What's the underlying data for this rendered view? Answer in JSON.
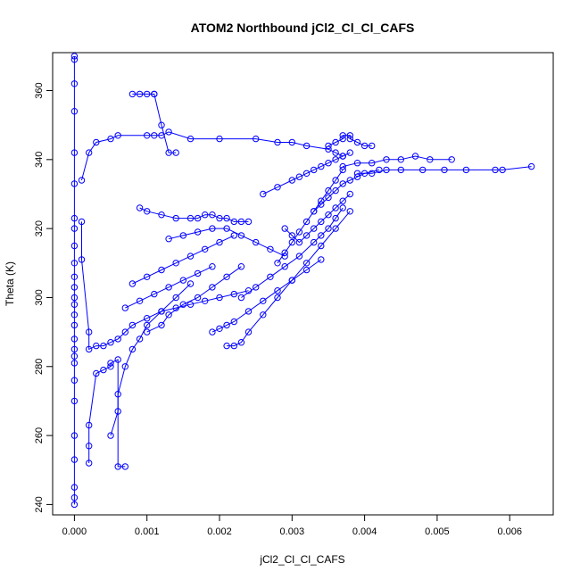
{
  "chart_data": {
    "type": "line",
    "title": "ATOM2 Northbound jCl2_Cl_Cl_CAFS",
    "xlabel": "jCl2_Cl_Cl_CAFS",
    "ylabel": "Theta (K)",
    "xlim": [
      -0.0003,
      0.0066
    ],
    "ylim": [
      237,
      371
    ],
    "x_ticks": [
      0.0,
      0.001,
      0.002,
      0.003,
      0.004,
      0.005,
      0.006
    ],
    "x_tick_labels": [
      "0.000",
      "0.001",
      "0.002",
      "0.003",
      "0.004",
      "0.005",
      "0.006"
    ],
    "y_ticks": [
      240,
      260,
      280,
      300,
      320,
      340,
      360
    ],
    "y_tick_labels": [
      "240",
      "260",
      "280",
      "300",
      "320",
      "340",
      "360"
    ],
    "grid": false,
    "legend": "none",
    "series": [
      {
        "color": "#0000ff",
        "marker": "open-circle",
        "x": [
          0.0,
          0.0,
          0.0,
          0.0,
          0.0,
          0.0,
          0.0,
          0.0,
          0.0,
          0.0,
          0.0,
          0.0,
          0.0,
          0.0,
          0.0,
          0.0,
          0.0,
          0.0,
          0.0,
          0.0,
          0.0,
          0.0,
          0.0,
          0.0,
          0.0,
          0.0,
          0.0
        ],
        "y": [
          240,
          242,
          245,
          253,
          260,
          270,
          276,
          281,
          283,
          285,
          288,
          292,
          295,
          298,
          300,
          303,
          306,
          310,
          315,
          320,
          323,
          333,
          342,
          354,
          362,
          369,
          370
        ]
      },
      {
        "color": "#0000ff",
        "marker": "open-circle",
        "x": [
          0.0001,
          0.0002,
          0.0003,
          0.0005,
          0.0006,
          0.001,
          0.0011,
          0.0012,
          0.0013,
          0.0016,
          0.002,
          0.0025,
          0.0028,
          0.003,
          0.0032,
          0.0035,
          0.0036,
          0.0037
        ],
        "y": [
          334,
          342,
          345,
          346,
          347,
          347,
          347,
          347,
          348,
          346,
          346,
          346,
          345,
          345,
          344,
          343,
          342,
          341
        ]
      },
      {
        "color": "#0000ff",
        "marker": "open-circle",
        "x": [
          0.0001,
          0.0001,
          0.0002,
          0.0002,
          0.0003,
          0.0004,
          0.0005,
          0.0006,
          0.0007,
          0.0008,
          0.001,
          0.0012,
          0.0014,
          0.0016,
          0.0018,
          0.002,
          0.0022,
          0.0024
        ],
        "y": [
          322,
          311,
          290,
          285,
          286,
          286,
          287,
          288,
          290,
          292,
          294,
          296,
          297,
          298,
          299,
          300,
          301,
          302
        ]
      },
      {
        "color": "#0000ff",
        "marker": "open-circle",
        "x": [
          0.0002,
          0.0002,
          0.0002,
          0.0003,
          0.0004,
          0.0005,
          0.0005,
          0.0006,
          0.0006,
          0.0007
        ],
        "y": [
          252,
          257,
          263,
          278,
          279,
          280,
          281,
          282,
          251,
          251
        ]
      },
      {
        "color": "#0000ff",
        "marker": "open-circle",
        "x": [
          0.0005,
          0.0006,
          0.0006,
          0.0007,
          0.0008,
          0.0009,
          0.001,
          0.0012,
          0.0014,
          0.0016
        ],
        "y": [
          260,
          267,
          272,
          280,
          285,
          288,
          292,
          296,
          300,
          304
        ]
      },
      {
        "color": "#0000ff",
        "marker": "open-circle",
        "x": [
          0.0008,
          0.0009,
          0.001,
          0.0011,
          0.0011,
          0.0012,
          0.0013,
          0.0014
        ],
        "y": [
          359,
          359,
          359,
          359,
          359,
          350,
          342,
          342
        ]
      },
      {
        "color": "#0000ff",
        "marker": "open-circle",
        "x": [
          0.0009,
          0.001,
          0.0012,
          0.0014,
          0.0016,
          0.0017,
          0.0018,
          0.0019,
          0.002,
          0.0021,
          0.0022,
          0.0023,
          0.0024
        ],
        "y": [
          326,
          325,
          324,
          323,
          323,
          323,
          324,
          324,
          323,
          323,
          322,
          322,
          322
        ]
      },
      {
        "color": "#0000ff",
        "marker": "open-circle",
        "x": [
          0.0008,
          0.001,
          0.0012,
          0.0014,
          0.0016,
          0.0018,
          0.002,
          0.0022
        ],
        "y": [
          304,
          306,
          308,
          310,
          312,
          314,
          316,
          318
        ]
      },
      {
        "color": "#0000ff",
        "marker": "open-circle",
        "x": [
          0.0019,
          0.002,
          0.0021,
          0.0022,
          0.0024,
          0.0026,
          0.0028,
          0.003,
          0.0032,
          0.0034
        ],
        "y": [
          290,
          291,
          292,
          293,
          296,
          299,
          302,
          305,
          308,
          311
        ]
      },
      {
        "color": "#0000ff",
        "marker": "open-circle",
        "x": [
          0.0021,
          0.0022,
          0.0023,
          0.0024,
          0.0026,
          0.0028,
          0.003,
          0.0032,
          0.0034,
          0.0036,
          0.0038
        ],
        "y": [
          286,
          286,
          287,
          290,
          295,
          300,
          305,
          310,
          315,
          320,
          325
        ]
      },
      {
        "color": "#0000ff",
        "marker": "open-circle",
        "x": [
          0.0023,
          0.0025,
          0.0027,
          0.0029,
          0.0031,
          0.0033,
          0.0034,
          0.0035,
          0.0036,
          0.0037
        ],
        "y": [
          300,
          303,
          306,
          309,
          312,
          316,
          318,
          320,
          323,
          326
        ]
      },
      {
        "color": "#0000ff",
        "marker": "open-circle",
        "x": [
          0.0026,
          0.0028,
          0.003,
          0.0031,
          0.0032,
          0.0033,
          0.0034,
          0.0035,
          0.0036,
          0.0037,
          0.0038
        ],
        "y": [
          330,
          332,
          334,
          335,
          336,
          337,
          338,
          339,
          340,
          341,
          342
        ]
      },
      {
        "color": "#0000ff",
        "marker": "open-circle",
        "x": [
          0.0028,
          0.0029,
          0.003,
          0.0031,
          0.0032,
          0.0033,
          0.0034,
          0.0035,
          0.0036,
          0.0037
        ],
        "y": [
          310,
          313,
          316,
          319,
          322,
          325,
          328,
          331,
          334,
          337
        ]
      },
      {
        "color": "#0000ff",
        "marker": "open-circle",
        "x": [
          0.0029,
          0.003,
          0.0031,
          0.0032,
          0.0033,
          0.0034,
          0.0035,
          0.0036,
          0.0037,
          0.0038
        ],
        "y": [
          320,
          318,
          316,
          318,
          320,
          322,
          324,
          326,
          328,
          330
        ]
      },
      {
        "color": "#0000ff",
        "marker": "open-circle",
        "x": [
          0.0035,
          0.0036,
          0.0037,
          0.0037,
          0.0038,
          0.0038,
          0.0039,
          0.004,
          0.0041
        ],
        "y": [
          344,
          345,
          346,
          347,
          347,
          346,
          345,
          344,
          344
        ]
      },
      {
        "color": "#0000ff",
        "marker": "open-circle",
        "x": [
          0.0037,
          0.0039,
          0.0041,
          0.0043,
          0.0045,
          0.0047,
          0.0049,
          0.0052
        ],
        "y": [
          338,
          339,
          339,
          340,
          340,
          341,
          340,
          340
        ]
      },
      {
        "color": "#0000ff",
        "marker": "open-circle",
        "x": [
          0.0039,
          0.0041,
          0.0043,
          0.0045,
          0.0048,
          0.0051,
          0.0054,
          0.0058,
          0.0059,
          0.0063
        ],
        "y": [
          336,
          336,
          337,
          337,
          337,
          337,
          337,
          337,
          337,
          338
        ]
      },
      {
        "color": "#0000ff",
        "marker": "open-circle",
        "x": [
          0.0033,
          0.0034,
          0.0035,
          0.0036,
          0.0037,
          0.0038,
          0.0039,
          0.004,
          0.0042
        ],
        "y": [
          325,
          327,
          329,
          331,
          333,
          334,
          335,
          336,
          337
        ]
      },
      {
        "color": "#0000ff",
        "marker": "open-circle",
        "x": [
          0.001,
          0.0012,
          0.0013,
          0.0015,
          0.0017,
          0.0019,
          0.0021,
          0.0023
        ],
        "y": [
          290,
          292,
          295,
          298,
          300,
          303,
          306,
          309
        ]
      },
      {
        "color": "#0000ff",
        "marker": "open-circle",
        "x": [
          0.0007,
          0.0009,
          0.0011,
          0.0013,
          0.0015,
          0.0017,
          0.0019
        ],
        "y": [
          297,
          299,
          301,
          303,
          305,
          307,
          309
        ]
      },
      {
        "color": "#0000ff",
        "marker": "open-circle",
        "x": [
          0.0013,
          0.0015,
          0.0017,
          0.0019,
          0.0021,
          0.0023,
          0.0025,
          0.0027,
          0.0029
        ],
        "y": [
          317,
          318,
          319,
          320,
          320,
          318,
          316,
          314,
          312
        ]
      }
    ]
  }
}
